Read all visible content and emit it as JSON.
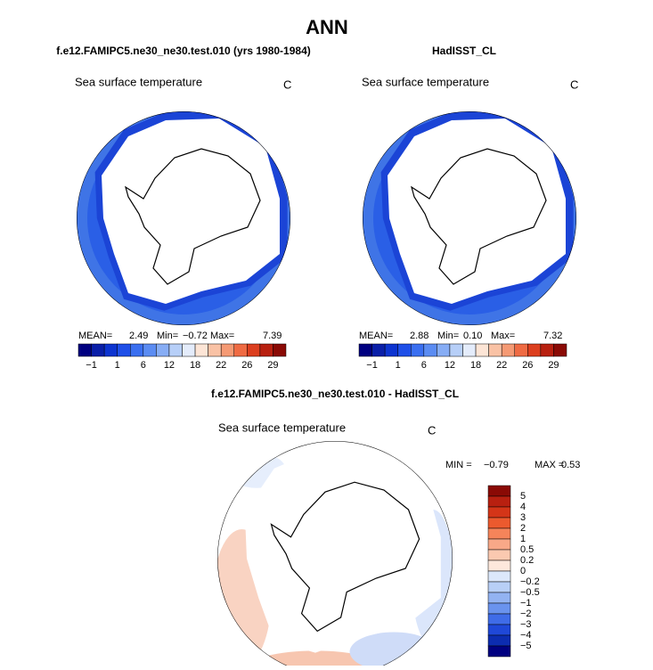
{
  "title": "ANN",
  "panels": [
    {
      "title": "f.e12.FAMIPC5.ne30_ne30.test.010 (yrs 1980-1984)",
      "variable": "Sea surface temperature",
      "units": "C",
      "stats": [
        {
          "label": "MEAN=",
          "value": "2.49"
        },
        {
          "label": "Min=",
          "value": "−0.72"
        },
        {
          "label": "Max=",
          "value": "7.39"
        }
      ],
      "colorbar": {
        "labels": [
          "−1",
          "1",
          "6",
          "12",
          "18",
          "22",
          "26",
          "29"
        ],
        "colors": [
          "#000080",
          "#0a1fa8",
          "#0d34d0",
          "#1f4fe8",
          "#3a6ff0",
          "#5b8cf2",
          "#87adf5",
          "#b7cff8",
          "#e4ecfb",
          "#fde5d6",
          "#f9c2a5",
          "#f59a74",
          "#ef6b43",
          "#dc3f1f",
          "#b82010",
          "#8a0a05"
        ]
      }
    },
    {
      "title": "HadISST_CL",
      "variable": "Sea surface temperature",
      "units": "C",
      "stats": [
        {
          "label": "MEAN=",
          "value": "2.88"
        },
        {
          "label": "Min=",
          "value": "0.10"
        },
        {
          "label": "Max=",
          "value": "7.32"
        }
      ],
      "colorbar": {
        "labels": [
          "−1",
          "1",
          "6",
          "12",
          "18",
          "22",
          "26",
          "29"
        ],
        "colors": [
          "#000080",
          "#0a1fa8",
          "#0d34d0",
          "#1f4fe8",
          "#3a6ff0",
          "#5b8cf2",
          "#87adf5",
          "#b7cff8",
          "#e4ecfb",
          "#fde5d6",
          "#f9c2a5",
          "#f59a74",
          "#ef6b43",
          "#dc3f1f",
          "#b82010",
          "#8a0a05"
        ]
      }
    }
  ],
  "difference": {
    "title": "f.e12.FAMIPC5.ne30_ne30.test.010 - HadISST_CL",
    "variable": "Sea surface temperature",
    "units": "C",
    "stats": [
      {
        "label": "MIN =",
        "value": "−0.79"
      },
      {
        "label": "MAX =",
        "value": "0.53"
      }
    ],
    "colorbar": {
      "labels": [
        "5",
        "4",
        "3",
        "2",
        "1",
        "0.5",
        "0.2",
        "0",
        "−0.2",
        "−0.5",
        "−1",
        "−2",
        "−3",
        "−4",
        "−5"
      ],
      "colors": [
        "#8a0a05",
        "#b82010",
        "#d43518",
        "#ec5a2e",
        "#f5845a",
        "#f8a888",
        "#fbc9b0",
        "#fde8dc",
        "#dce8fb",
        "#b8cff6",
        "#93b3f2",
        "#6a93ee",
        "#3f6ce8",
        "#1f48d8",
        "#0c2cb0",
        "#000080"
      ]
    }
  }
}
